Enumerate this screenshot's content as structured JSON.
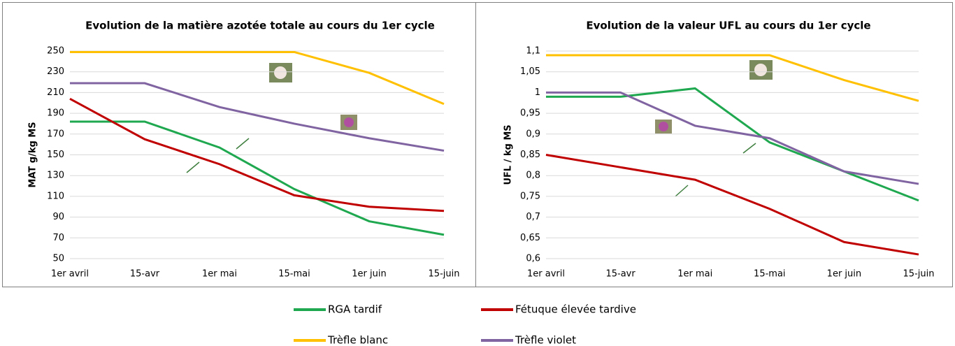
{
  "chart_data": [
    {
      "type": "line",
      "title": "Evolution de la matière azotée totale au cours du 1er cycle",
      "y_label": "MAT g/kg MS",
      "categories": [
        "1er avril",
        "15-avr",
        "1er mai",
        "15-mai",
        "1er juin",
        "15-juin"
      ],
      "ylim": [
        50,
        250
      ],
      "yticks": [
        50,
        70,
        90,
        110,
        130,
        150,
        170,
        190,
        210,
        230,
        250
      ],
      "grid": true,
      "series": [
        {
          "name": "RGA tardif",
          "color": "#1fa84f",
          "values": [
            182,
            182,
            157,
            117,
            86,
            73
          ]
        },
        {
          "name": "Fétuque élevée tardive",
          "color": "#c00000",
          "values": [
            204,
            165,
            141,
            111,
            100,
            96
          ]
        },
        {
          "name": "Trèfle blanc",
          "color": "#ffc000",
          "values": [
            249,
            249,
            249,
            249,
            229,
            199
          ]
        },
        {
          "name": "Trèfle violet",
          "color": "#8064a2",
          "values": [
            219,
            219,
            196,
            180,
            166,
            154
          ]
        }
      ]
    },
    {
      "type": "line",
      "title": "Evolution de la valeur UFL au cours du 1er cycle",
      "y_label": "UFL / kg MS",
      "categories": [
        "1er avril",
        "15-avr",
        "1er mai",
        "15-mai",
        "1er juin",
        "15-juin"
      ],
      "ylim": [
        0.6,
        1.1
      ],
      "yticks": [
        {
          "value": 0.6,
          "label": "0,6"
        },
        {
          "value": 0.65,
          "label": "0,65"
        },
        {
          "value": 0.7,
          "label": "0,7"
        },
        {
          "value": 0.75,
          "label": "0,75"
        },
        {
          "value": 0.8,
          "label": "0,8"
        },
        {
          "value": 0.85,
          "label": "0,85"
        },
        {
          "value": 0.9,
          "label": "0,9"
        },
        {
          "value": 0.95,
          "label": "0,95"
        },
        1,
        {
          "value": 1.05,
          "label": "1,05"
        },
        {
          "value": 1.1,
          "label": "1,1"
        }
      ],
      "grid": true,
      "series": [
        {
          "name": "RGA tardif",
          "color": "#1fa84f",
          "values": [
            0.99,
            0.99,
            1.01,
            0.88,
            0.81,
            0.74
          ]
        },
        {
          "name": "Fétuque élevée tardive",
          "color": "#c00000",
          "values": [
            0.85,
            0.82,
            0.79,
            0.72,
            0.64,
            0.61
          ]
        },
        {
          "name": "Trèfle blanc",
          "color": "#ffc000",
          "values": [
            1.09,
            1.09,
            1.09,
            1.09,
            1.03,
            0.98
          ]
        },
        {
          "name": "Trèfle violet",
          "color": "#8064a2",
          "values": [
            1.0,
            1.0,
            0.92,
            0.89,
            0.81,
            0.78
          ]
        }
      ]
    }
  ]
}
